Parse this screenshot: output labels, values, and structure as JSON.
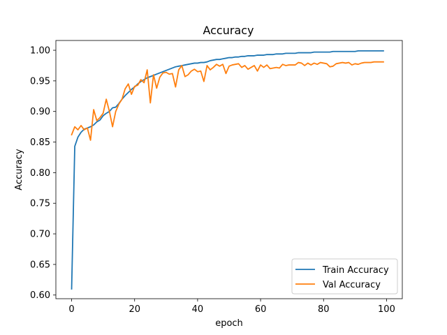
{
  "chart_data": {
    "type": "line",
    "title": "Accuracy",
    "xlabel": "epoch",
    "ylabel": "Accuracy",
    "xlim": [
      -5,
      105
    ],
    "ylim": [
      0.594,
      1.016
    ],
    "xticks": [
      0,
      20,
      40,
      60,
      80,
      100
    ],
    "yticks": [
      0.6,
      0.65,
      0.7,
      0.75,
      0.8,
      0.85,
      0.9,
      0.95,
      1.0
    ],
    "ytick_labels": [
      "0.60",
      "0.65",
      "0.70",
      "0.75",
      "0.80",
      "0.85",
      "0.90",
      "0.95",
      "1.00"
    ],
    "grid": false,
    "legend": {
      "placement": "lower-right"
    },
    "series": [
      {
        "name": "Train Accuracy",
        "color": "#1f77b4",
        "values": [
          0.61,
          0.843,
          0.858,
          0.866,
          0.871,
          0.873,
          0.875,
          0.878,
          0.883,
          0.886,
          0.893,
          0.897,
          0.9,
          0.906,
          0.907,
          0.913,
          0.92,
          0.926,
          0.931,
          0.936,
          0.94,
          0.945,
          0.949,
          0.952,
          0.955,
          0.957,
          0.959,
          0.961,
          0.963,
          0.965,
          0.967,
          0.969,
          0.971,
          0.973,
          0.974,
          0.975,
          0.976,
          0.977,
          0.978,
          0.979,
          0.979,
          0.98,
          0.98,
          0.981,
          0.983,
          0.984,
          0.985,
          0.985,
          0.986,
          0.987,
          0.988,
          0.988,
          0.989,
          0.989,
          0.99,
          0.99,
          0.991,
          0.991,
          0.991,
          0.992,
          0.992,
          0.992,
          0.993,
          0.993,
          0.993,
          0.994,
          0.994,
          0.994,
          0.995,
          0.995,
          0.995,
          0.995,
          0.996,
          0.996,
          0.996,
          0.996,
          0.996,
          0.997,
          0.997,
          0.997,
          0.997,
          0.997,
          0.997,
          0.998,
          0.998,
          0.998,
          0.998,
          0.998,
          0.998,
          0.998,
          0.998,
          0.999,
          0.999,
          0.999,
          0.999,
          0.999,
          0.999,
          0.999,
          0.999,
          0.999
        ]
      },
      {
        "name": "Val Accuracy",
        "color": "#ff7f0e",
        "values": [
          0.862,
          0.875,
          0.87,
          0.877,
          0.87,
          0.873,
          0.853,
          0.903,
          0.885,
          0.89,
          0.897,
          0.92,
          0.9,
          0.875,
          0.9,
          0.912,
          0.92,
          0.937,
          0.945,
          0.928,
          0.941,
          0.943,
          0.952,
          0.947,
          0.968,
          0.914,
          0.96,
          0.938,
          0.956,
          0.963,
          0.964,
          0.961,
          0.962,
          0.94,
          0.968,
          0.975,
          0.957,
          0.96,
          0.966,
          0.969,
          0.965,
          0.966,
          0.949,
          0.975,
          0.968,
          0.972,
          0.977,
          0.974,
          0.977,
          0.962,
          0.974,
          0.976,
          0.977,
          0.978,
          0.972,
          0.975,
          0.969,
          0.972,
          0.975,
          0.966,
          0.976,
          0.972,
          0.976,
          0.97,
          0.971,
          0.972,
          0.971,
          0.977,
          0.975,
          0.976,
          0.976,
          0.976,
          0.98,
          0.979,
          0.975,
          0.979,
          0.976,
          0.979,
          0.977,
          0.98,
          0.979,
          0.978,
          0.973,
          0.974,
          0.978,
          0.979,
          0.98,
          0.979,
          0.98,
          0.976,
          0.978,
          0.977,
          0.979,
          0.98,
          0.98,
          0.98,
          0.981,
          0.981,
          0.981,
          0.981
        ]
      }
    ]
  }
}
